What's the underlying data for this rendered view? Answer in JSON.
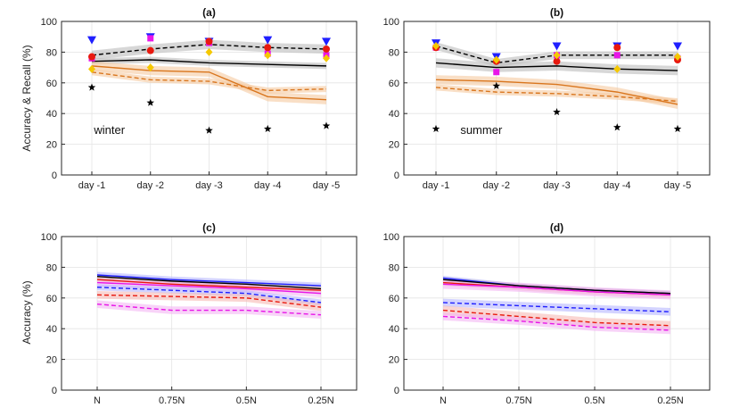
{
  "figure": {
    "ylabel_top": "Accuracy & Recall (%)",
    "ylabel_bottom": "Accuracy (%)"
  },
  "colors": {
    "black": "#000000",
    "orange": "#d9761e",
    "gray_band": "#bdbdbd",
    "orange_band": "#f5c9a0",
    "blue": "#1f1fff",
    "red": "#e8190f",
    "magenta": "#e815e8",
    "yellow": "#f5c800",
    "pink_band": "#f4b5f4",
    "blue_band": "#b5b5ff",
    "red_band": "#f6b9b4"
  },
  "chart_data": [
    {
      "id": "a",
      "type": "line",
      "title": "(a)",
      "annotation": "winter",
      "categories": [
        "day -1",
        "day -2",
        "day -3",
        "day -4",
        "day -5"
      ],
      "ylim": [
        0,
        100
      ],
      "yticks": [
        0,
        20,
        40,
        60,
        80,
        100
      ],
      "grid": true,
      "series": [
        {
          "name": "black dashed",
          "color": "black",
          "dash": true,
          "values": [
            78,
            82,
            85,
            83,
            82
          ],
          "band": 3,
          "band_color": "gray_band"
        },
        {
          "name": "black solid",
          "color": "black",
          "dash": false,
          "values": [
            74,
            75,
            73,
            72,
            71
          ],
          "band": 2,
          "band_color": "gray_band"
        },
        {
          "name": "orange solid",
          "color": "orange",
          "dash": false,
          "values": [
            71,
            68,
            67,
            51,
            49
          ],
          "band": 3,
          "band_color": "orange_band"
        },
        {
          "name": "orange dashed",
          "color": "orange",
          "dash": true,
          "values": [
            67,
            62,
            61,
            55,
            56
          ],
          "band": 2,
          "band_color": "orange_band"
        }
      ],
      "markers": [
        {
          "shape": "triangle-down",
          "color": "blue",
          "values": [
            88,
            90,
            87,
            88,
            87
          ]
        },
        {
          "shape": "square",
          "color": "magenta",
          "values": [
            76,
            89,
            86,
            79,
            78
          ]
        },
        {
          "shape": "circle",
          "color": "red",
          "values": [
            77,
            81,
            87,
            83,
            82
          ]
        },
        {
          "shape": "diamond",
          "color": "yellow",
          "values": [
            69,
            70,
            80,
            78,
            76
          ]
        },
        {
          "shape": "star",
          "color": "black",
          "values": [
            57,
            47,
            29,
            30,
            32
          ]
        }
      ]
    },
    {
      "id": "b",
      "type": "line",
      "title": "(b)",
      "annotation": "summer",
      "categories": [
        "day -1",
        "day -2",
        "day -3",
        "day -4",
        "day -5"
      ],
      "ylim": [
        0,
        100
      ],
      "yticks": [
        0,
        20,
        40,
        60,
        80,
        100
      ],
      "grid": true,
      "series": [
        {
          "name": "black dashed",
          "color": "black",
          "dash": true,
          "values": [
            84,
            73,
            78,
            78,
            78
          ],
          "band": 2.5,
          "band_color": "gray_band"
        },
        {
          "name": "black solid",
          "color": "black",
          "dash": false,
          "values": [
            73,
            70,
            71,
            69,
            68
          ],
          "band": 3,
          "band_color": "gray_band"
        },
        {
          "name": "orange solid",
          "color": "orange",
          "dash": false,
          "values": [
            62,
            61,
            59,
            54,
            46
          ],
          "band": 3,
          "band_color": "orange_band"
        },
        {
          "name": "orange dashed",
          "color": "orange",
          "dash": true,
          "values": [
            57,
            54,
            53,
            51,
            48
          ],
          "band": 2,
          "band_color": "orange_band"
        }
      ],
      "markers": [
        {
          "shape": "triangle-down",
          "color": "blue",
          "values": [
            86,
            77,
            84,
            84,
            84
          ]
        },
        {
          "shape": "square",
          "color": "magenta",
          "values": [
            83,
            67,
            78,
            78,
            76
          ]
        },
        {
          "shape": "circle",
          "color": "red",
          "values": [
            83,
            74,
            74,
            83,
            75
          ]
        },
        {
          "shape": "diamond",
          "color": "yellow",
          "values": [
            84,
            75,
            78,
            69,
            77
          ]
        },
        {
          "shape": "star",
          "color": "black",
          "values": [
            30,
            58,
            41,
            31,
            30
          ]
        }
      ]
    },
    {
      "id": "c",
      "type": "line",
      "title": "(c)",
      "categories": [
        "N",
        "0.75N",
        "0.5N",
        "0.25N"
      ],
      "ylim": [
        0,
        100
      ],
      "yticks": [
        0,
        20,
        40,
        60,
        80,
        100
      ],
      "grid": true,
      "series": [
        {
          "name": "blue solid",
          "color": "blue",
          "dash": false,
          "values": [
            75,
            72,
            70,
            68
          ],
          "band": 2,
          "band_color": "blue_band"
        },
        {
          "name": "black solid",
          "color": "black",
          "dash": false,
          "values": [
            74,
            71,
            69,
            66
          ],
          "band": 1.5,
          "band_color": "gray_band"
        },
        {
          "name": "red solid",
          "color": "red",
          "dash": false,
          "values": [
            72,
            69,
            67,
            65
          ],
          "band": 2,
          "band_color": "red_band"
        },
        {
          "name": "magenta solid",
          "color": "magenta",
          "dash": false,
          "values": [
            70,
            68,
            66,
            63
          ],
          "band": 2.5,
          "band_color": "pink_band"
        },
        {
          "name": "blue dashed",
          "color": "blue",
          "dash": true,
          "values": [
            67,
            65,
            63,
            57
          ],
          "band": 2,
          "band_color": "blue_band"
        },
        {
          "name": "red dashed",
          "color": "red",
          "dash": true,
          "values": [
            62,
            61,
            60,
            54
          ],
          "band": 2.5,
          "band_color": "red_band"
        },
        {
          "name": "magenta dashed",
          "color": "magenta",
          "dash": true,
          "values": [
            56,
            52,
            52,
            49
          ],
          "band": 2.5,
          "band_color": "pink_band"
        }
      ]
    },
    {
      "id": "d",
      "type": "line",
      "title": "(d)",
      "categories": [
        "N",
        "0.75N",
        "0.5N",
        "0.25N"
      ],
      "ylim": [
        0,
        100
      ],
      "yticks": [
        0,
        20,
        40,
        60,
        80,
        100
      ],
      "grid": true,
      "series": [
        {
          "name": "blue solid",
          "color": "blue",
          "dash": false,
          "values": [
            73,
            68,
            65,
            63
          ],
          "band": 1.5,
          "band_color": "blue_band"
        },
        {
          "name": "black solid",
          "color": "black",
          "dash": false,
          "values": [
            72,
            68,
            65,
            63
          ],
          "band": 1.5,
          "band_color": "gray_band"
        },
        {
          "name": "red solid",
          "color": "red",
          "dash": false,
          "values": [
            70,
            67,
            64,
            62
          ],
          "band": 2,
          "band_color": "red_band"
        },
        {
          "name": "magenta solid",
          "color": "magenta",
          "dash": false,
          "values": [
            69,
            67,
            64,
            62
          ],
          "band": 3,
          "band_color": "pink_band"
        },
        {
          "name": "blue dashed",
          "color": "blue",
          "dash": true,
          "values": [
            57,
            55,
            53,
            51
          ],
          "band": 2.5,
          "band_color": "blue_band"
        },
        {
          "name": "red dashed",
          "color": "red",
          "dash": true,
          "values": [
            52,
            48,
            44,
            42
          ],
          "band": 3,
          "band_color": "red_band"
        },
        {
          "name": "magenta dashed",
          "color": "magenta",
          "dash": true,
          "values": [
            48,
            45,
            41,
            39
          ],
          "band": 2.5,
          "band_color": "pink_band"
        }
      ]
    }
  ]
}
